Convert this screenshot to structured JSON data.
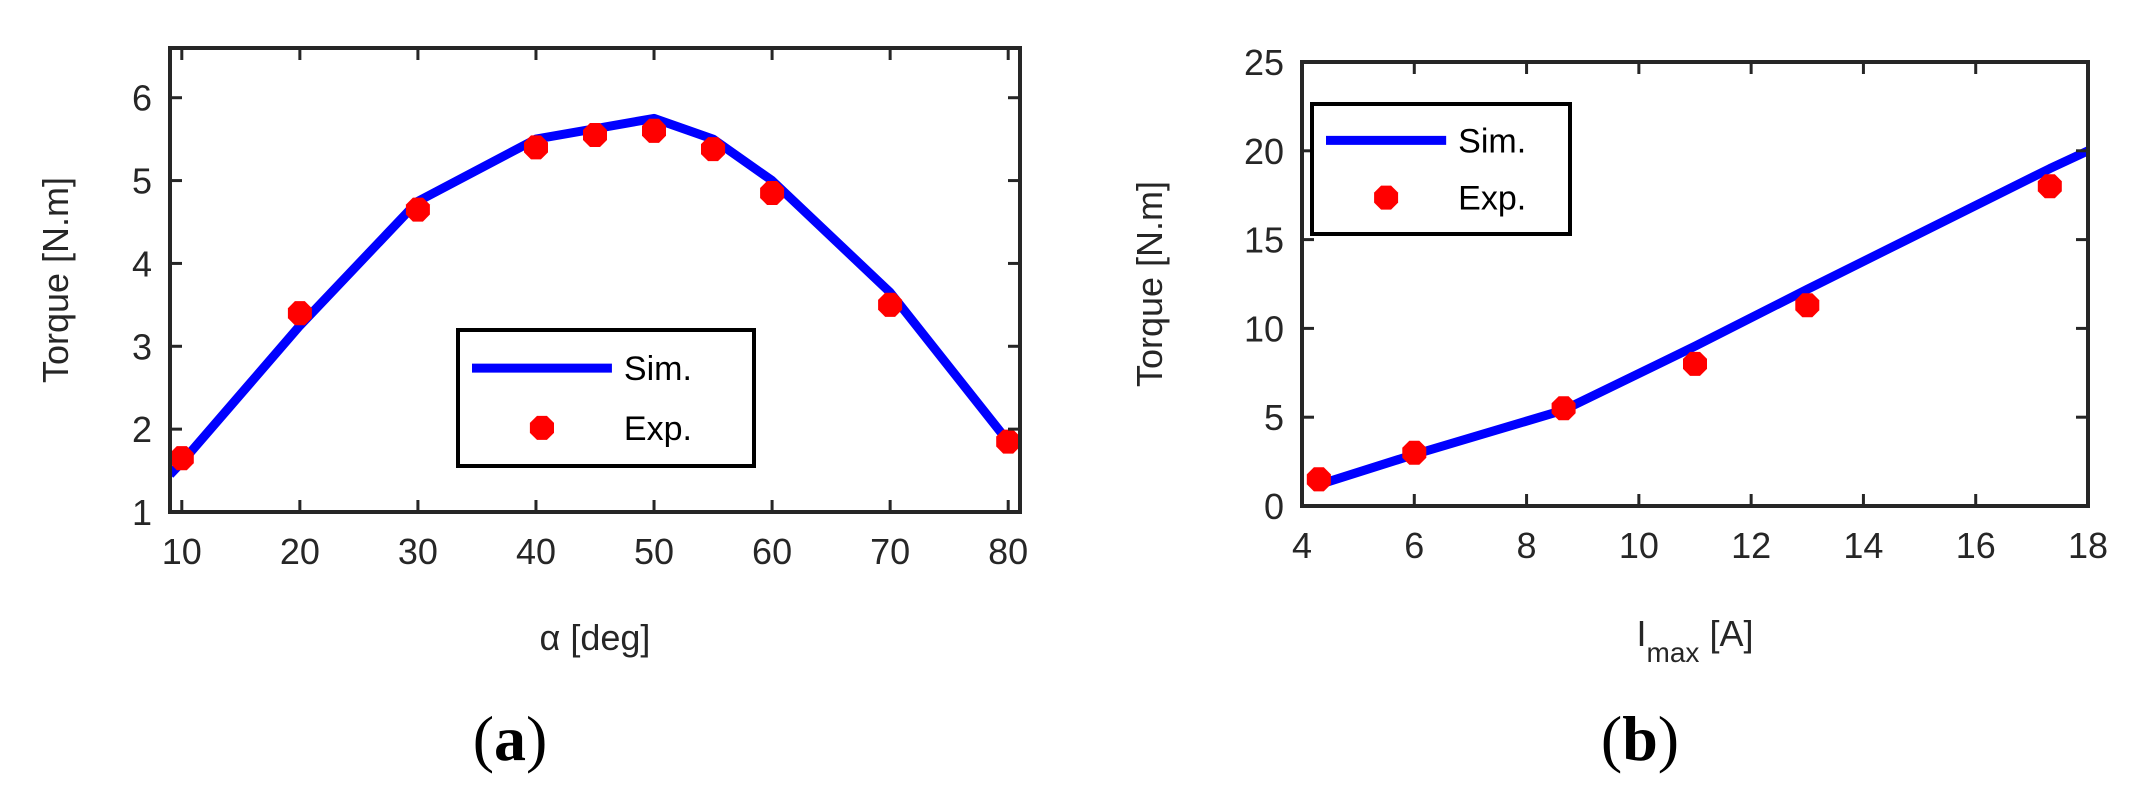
{
  "chart_data": [
    {
      "type": "line",
      "panel_label": {
        "open": "(",
        "letter": "a",
        "close": ")"
      },
      "xlabel": "α [deg]",
      "ylabel": "Torque [N.m]",
      "xlim": [
        9,
        81
      ],
      "ylim": [
        1,
        6.6
      ],
      "xticks": [
        10,
        20,
        30,
        40,
        50,
        60,
        70,
        80
      ],
      "yticks": [
        1,
        2,
        3,
        4,
        5,
        6
      ],
      "legend_position": "lower-right",
      "colors": {
        "sim": "#0000ff",
        "exp": "#ff0000"
      },
      "series": [
        {
          "name": "Sim.",
          "style": "line",
          "x": [
            9,
            10,
            20,
            30,
            40,
            50,
            55,
            60,
            70,
            80
          ],
          "y": [
            1.45,
            1.6,
            3.25,
            4.75,
            5.5,
            5.75,
            5.5,
            5.0,
            3.65,
            1.85
          ]
        },
        {
          "name": "Exp.",
          "style": "markers",
          "x": [
            10,
            20,
            30,
            40,
            45,
            50,
            55,
            60,
            70,
            80
          ],
          "y": [
            1.65,
            3.4,
            4.65,
            5.4,
            5.55,
            5.6,
            5.38,
            4.85,
            3.5,
            1.85
          ]
        }
      ]
    },
    {
      "type": "line",
      "panel_label": {
        "open": "(",
        "letter": "b",
        "close": ")"
      },
      "xlabel_main": "I",
      "xlabel_sub": "max",
      "xlabel_unit": " [A]",
      "ylabel": "Torque [N.m]",
      "xlim": [
        4,
        18
      ],
      "ylim": [
        0,
        25
      ],
      "xticks": [
        4,
        6,
        8,
        10,
        12,
        14,
        16,
        18
      ],
      "yticks": [
        0,
        5,
        10,
        15,
        20,
        25
      ],
      "legend_position": "top-left",
      "colors": {
        "sim": "#0000ff",
        "exp": "#ff0000"
      },
      "series": [
        {
          "name": "Sim.",
          "style": "line",
          "x": [
            4.3,
            6,
            8.66,
            11,
            13,
            17.32,
            18
          ],
          "y": [
            1.2,
            2.9,
            5.4,
            9.0,
            12.2,
            19.0,
            20.0
          ]
        },
        {
          "name": "Exp.",
          "style": "markers",
          "x": [
            4.3,
            6,
            8.66,
            11,
            13,
            17.32
          ],
          "y": [
            1.5,
            3.0,
            5.5,
            8.0,
            11.3,
            18.0
          ]
        }
      ]
    }
  ]
}
